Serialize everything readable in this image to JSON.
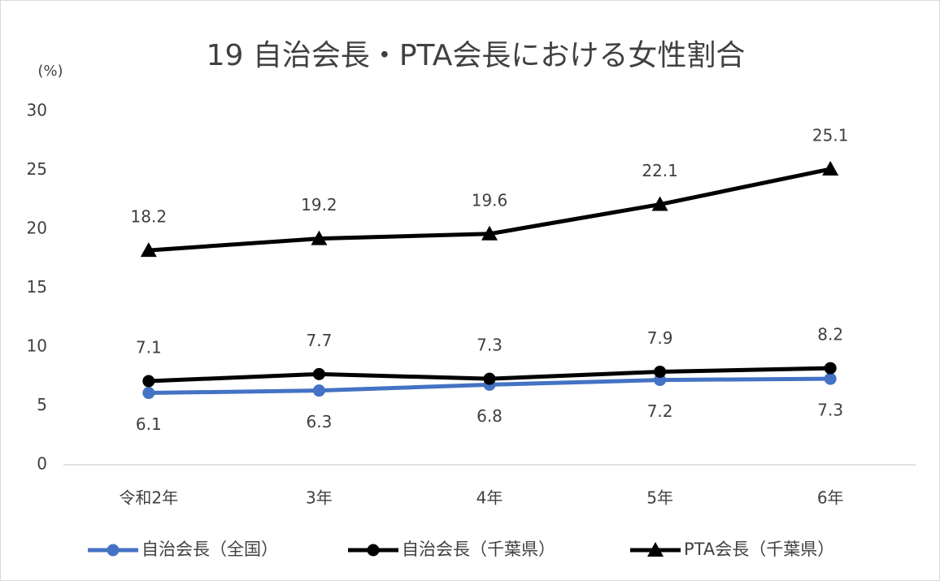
{
  "chart_data": {
    "type": "line",
    "title": "19 自治会長・PTA会長における女性割合",
    "y_label": "(%)",
    "categories": [
      "令和2年",
      "3年",
      "4年",
      "5年",
      "6年"
    ],
    "series": [
      {
        "name": "自治会長（全国）",
        "color": "#4472c4",
        "marker": "circle",
        "label_position": "below",
        "values": [
          6.1,
          6.3,
          6.8,
          7.2,
          7.3
        ]
      },
      {
        "name": "自治会長（千葉県）",
        "color": "#000000",
        "marker": "circle",
        "label_position": "above",
        "values": [
          7.1,
          7.7,
          7.3,
          7.9,
          8.2
        ]
      },
      {
        "name": "PTA会長（千葉県）",
        "color": "#000000",
        "marker": "triangle",
        "label_position": "above",
        "values": [
          18.2,
          19.2,
          19.6,
          22.1,
          25.1
        ]
      }
    ],
    "ylim": [
      0,
      30
    ],
    "yticks": [
      0,
      5,
      10,
      15,
      20,
      25,
      30
    ],
    "grid": false,
    "legend": "bottom"
  }
}
